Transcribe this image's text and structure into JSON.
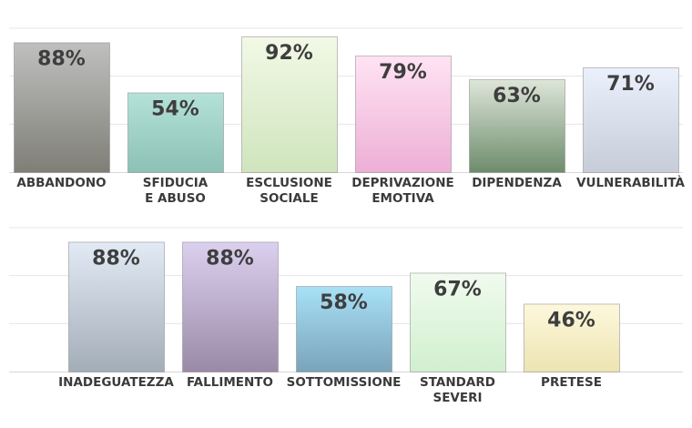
{
  "chart_data": [
    {
      "type": "bar",
      "categories": [
        [
          "ABBANDONO"
        ],
        [
          "SFIDUCIA",
          "E ABUSO"
        ],
        [
          "ESCLUSIONE",
          "SOCIALE"
        ],
        [
          "DEPRIVAZIONE",
          "EMOTIVA"
        ],
        [
          "DIPENDENZA"
        ],
        [
          "VULNERABILITÀ"
        ]
      ],
      "values": [
        88,
        54,
        92,
        79,
        63,
        71
      ],
      "labels": [
        "88%",
        "54%",
        "92%",
        "79%",
        "63%",
        "71%"
      ],
      "colors": [
        [
          "#bfbfbf",
          "#7f7f77"
        ],
        [
          "#b4e2d8",
          "#8cc1b5"
        ],
        [
          "#f2f9e6",
          "#cfe4bd"
        ],
        [
          "#ffe3f3",
          "#edafd6"
        ],
        [
          "#dde6d9",
          "#6e8c6c"
        ],
        [
          "#eaf0fc",
          "#c7ccd9"
        ]
      ],
      "ylim": [
        0,
        100
      ],
      "grid": true
    },
    {
      "type": "bar",
      "categories": [
        [
          "INADEGUATEZZA"
        ],
        [
          "FALLIMENTO"
        ],
        [
          "SOTTOMISSIONE"
        ],
        [
          "STANDARD",
          "SEVERI"
        ],
        [
          "PRETESE"
        ]
      ],
      "values": [
        88,
        88,
        58,
        67,
        46
      ],
      "labels": [
        "88%",
        "88%",
        "58%",
        "67%",
        "46%"
      ],
      "colors": [
        [
          "#e2eaf5",
          "#a3adb8"
        ],
        [
          "#dcd0ef",
          "#9a8aa7"
        ],
        [
          "#a8e1f6",
          "#7aa3ba"
        ],
        [
          "#f0fbee",
          "#d1efcf"
        ],
        [
          "#fdf8dc",
          "#ede4b2"
        ]
      ],
      "ylim": [
        0,
        100
      ],
      "grid": true
    }
  ]
}
